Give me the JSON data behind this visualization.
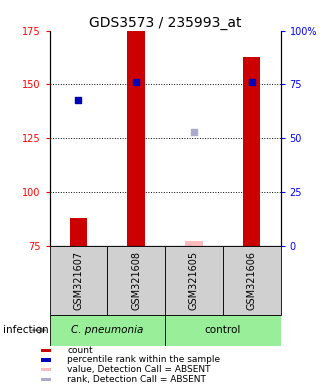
{
  "title": "GDS3573 / 235993_at",
  "samples": [
    "GSM321607",
    "GSM321608",
    "GSM321605",
    "GSM321606"
  ],
  "ylim_left": [
    75,
    175
  ],
  "ylim_right": [
    0,
    100
  ],
  "yticks_left": [
    75,
    100,
    125,
    150,
    175
  ],
  "yticks_right": [
    0,
    25,
    50,
    75,
    100
  ],
  "ytick_labels_right": [
    "0",
    "25",
    "50",
    "75",
    "100%"
  ],
  "bar_values": [
    88,
    175,
    77,
    163
  ],
  "bar_colors": [
    "#cc0000",
    "#cc0000",
    "#ffbbbb",
    "#cc0000"
  ],
  "rank_values": [
    68,
    76,
    53,
    76
  ],
  "rank_colors": [
    "#0000bb",
    "#0000bb",
    "#aaaacc",
    "#0000bb"
  ],
  "absent_flags": [
    false,
    false,
    true,
    false
  ],
  "bar_width": 0.3,
  "group1_color": "#aaddaa",
  "group2_color": "#aaddaa",
  "xlabel_group": "infection",
  "legend_items": [
    {
      "label": "count",
      "color": "#cc0000"
    },
    {
      "label": "percentile rank within the sample",
      "color": "#0000bb"
    },
    {
      "label": "value, Detection Call = ABSENT",
      "color": "#ffbbbb"
    },
    {
      "label": "rank, Detection Call = ABSENT",
      "color": "#aaaacc"
    }
  ],
  "title_fontsize": 10,
  "tick_label_fontsize": 7,
  "sample_label_fontsize": 7
}
